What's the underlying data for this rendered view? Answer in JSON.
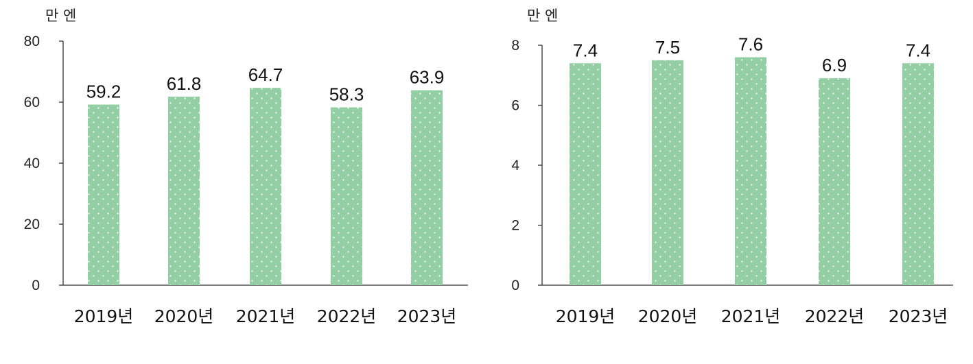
{
  "chart_data": [
    {
      "type": "bar",
      "unit_label": "만 엔",
      "categories": [
        "2019년",
        "2020년",
        "2021년",
        "2022년",
        "2023년"
      ],
      "values": [
        59.2,
        61.8,
        64.7,
        58.3,
        63.9
      ],
      "value_labels": [
        "59.2",
        "61.8",
        "64.7",
        "58.3",
        "63.9"
      ],
      "ylim": [
        0,
        80
      ],
      "yticks": [
        0,
        20,
        40,
        60,
        80
      ],
      "grid": false,
      "bar_color": "#93cea4",
      "pattern": "white-dots"
    },
    {
      "type": "bar",
      "unit_label": "만 엔",
      "categories": [
        "2019년",
        "2020년",
        "2021년",
        "2022년",
        "2023년"
      ],
      "values": [
        7.4,
        7.5,
        7.6,
        6.9,
        7.4
      ],
      "value_labels": [
        "7.4",
        "7.5",
        "7.6",
        "6.9",
        "7.4"
      ],
      "ylim": [
        0,
        8
      ],
      "yticks": [
        0,
        2,
        4,
        6,
        8
      ],
      "grid": false,
      "bar_color": "#93cea4",
      "pattern": "white-dots"
    }
  ]
}
